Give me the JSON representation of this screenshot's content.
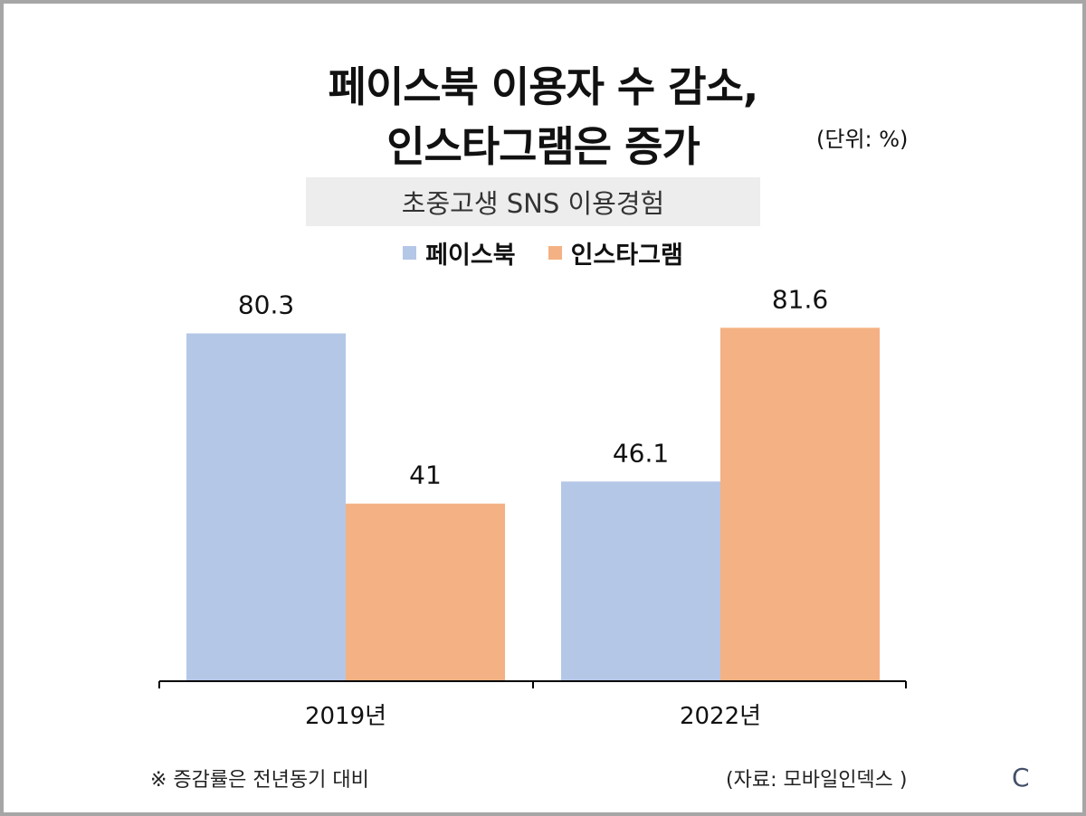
{
  "title_line1": "페이스북 이용자 수 감소,",
  "title_line2": "인스타그램은 증가",
  "unit": "(단위: %)",
  "footnote": "※ 증감률은 전년동기 대비",
  "source": "(자료: 모바일인덱스 )",
  "logo": "C",
  "chart_data": {
    "type": "bar",
    "title": "페이스북 이용자 수 감소, 인스타그램은 증가",
    "subtitle": "초중고생 SNS 이용경험",
    "categories": [
      "2019년",
      "2022년"
    ],
    "series": [
      {
        "name": "페이스북",
        "color": "#b4c7e7",
        "values": [
          80.3,
          46.1
        ]
      },
      {
        "name": "인스타그램",
        "color": "#f4b183",
        "values": [
          41,
          81.6
        ]
      }
    ],
    "ylim": [
      0,
      82.5
    ],
    "grid": false,
    "legend": "top-center",
    "data_labels": true
  }
}
